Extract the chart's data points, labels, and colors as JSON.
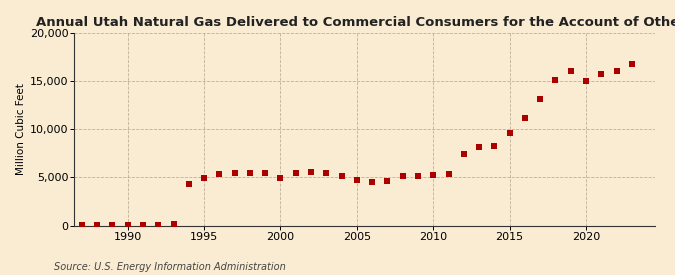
{
  "title": "Annual Utah Natural Gas Delivered to Commercial Consumers for the Account of Others",
  "ylabel": "Million Cubic Feet",
  "source": "Source: U.S. Energy Information Administration",
  "background_color": "#faecd2",
  "marker_color": "#aa0000",
  "xlim": [
    1986.5,
    2024.5
  ],
  "ylim": [
    0,
    20000
  ],
  "yticks": [
    0,
    5000,
    10000,
    15000,
    20000
  ],
  "xticks": [
    1990,
    1995,
    2000,
    2005,
    2010,
    2015,
    2020
  ],
  "years": [
    1987,
    1988,
    1989,
    1990,
    1991,
    1992,
    1993,
    1994,
    1995,
    1996,
    1997,
    1998,
    1999,
    2000,
    2001,
    2002,
    2003,
    2004,
    2005,
    2006,
    2007,
    2008,
    2009,
    2010,
    2011,
    2012,
    2013,
    2014,
    2015,
    2016,
    2017,
    2018,
    2019,
    2020,
    2021,
    2022,
    2023
  ],
  "values": [
    50,
    60,
    70,
    80,
    90,
    100,
    110,
    4300,
    4950,
    5300,
    5450,
    5500,
    5500,
    4950,
    5450,
    5600,
    5450,
    5100,
    4700,
    4500,
    4600,
    5100,
    5100,
    5250,
    5400,
    7400,
    8200,
    8250,
    9600,
    11150,
    13100,
    15150,
    16100,
    15000,
    15700,
    16100,
    16800
  ],
  "title_fontsize": 9.5,
  "tick_labelsize": 8,
  "ylabel_fontsize": 7.5,
  "source_fontsize": 7,
  "marker_size": 15
}
